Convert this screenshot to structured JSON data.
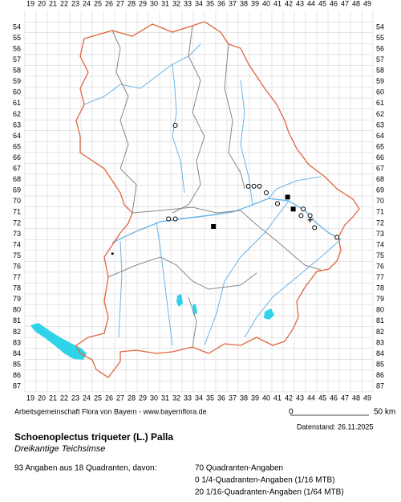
{
  "grid": {
    "columns": [
      19,
      20,
      21,
      22,
      23,
      24,
      25,
      26,
      27,
      28,
      29,
      30,
      31,
      32,
      33,
      34,
      35,
      36,
      37,
      38,
      39,
      40,
      41,
      42,
      43,
      44,
      45,
      46,
      47,
      48,
      49
    ],
    "rows": [
      54,
      55,
      56,
      57,
      58,
      59,
      60,
      61,
      62,
      63,
      64,
      65,
      66,
      67,
      68,
      69,
      70,
      71,
      72,
      73,
      74,
      75,
      76,
      77,
      78,
      79,
      80,
      81,
      82,
      83,
      84,
      85,
      86,
      87
    ]
  },
  "points": [
    {
      "x": 31.9,
      "y": 63.0,
      "symbol": "circle"
    },
    {
      "x": 38.4,
      "y": 68.6,
      "symbol": "circle"
    },
    {
      "x": 38.9,
      "y": 68.6,
      "symbol": "circle"
    },
    {
      "x": 39.4,
      "y": 68.6,
      "symbol": "circle"
    },
    {
      "x": 40.0,
      "y": 69.2,
      "symbol": "circle"
    },
    {
      "x": 41.9,
      "y": 69.6,
      "symbol": "square"
    },
    {
      "x": 41.0,
      "y": 70.2,
      "symbol": "circle"
    },
    {
      "x": 42.4,
      "y": 70.7,
      "symbol": "square"
    },
    {
      "x": 43.3,
      "y": 70.7,
      "symbol": "circle"
    },
    {
      "x": 43.1,
      "y": 71.3,
      "symbol": "circle"
    },
    {
      "x": 43.9,
      "y": 71.3,
      "symbol": "circle"
    },
    {
      "x": 43.9,
      "y": 71.7,
      "symbol": "plus"
    },
    {
      "x": 44.3,
      "y": 72.4,
      "symbol": "circle"
    },
    {
      "x": 46.3,
      "y": 73.3,
      "symbol": "circle"
    },
    {
      "x": 35.3,
      "y": 72.3,
      "symbol": "square"
    },
    {
      "x": 31.3,
      "y": 71.6,
      "symbol": "circle"
    },
    {
      "x": 31.9,
      "y": 71.6,
      "symbol": "circle"
    },
    {
      "x": 26.3,
      "y": 74.8,
      "symbol": "dot"
    }
  ],
  "footer": {
    "credit": "Arbeitsgemeinschaft Flora von Bayern - www.bayernflora.de",
    "scale_start": "0",
    "scale_end": "50 km",
    "date": "Datenstand: 26.11.2025",
    "species": "Schoenoplectus triqueter (L.) Palla",
    "common_name": "Dreikantige Teichsimse",
    "summary": "93 Angaben aus 18 Quadranten, davon:",
    "stats": [
      "70 Quadranten-Angaben",
      "0 1/4-Quadranten-Angaben (1/16 MTB)",
      "20 1/16-Quadranten-Angaben (1/64 MTB)"
    ]
  }
}
